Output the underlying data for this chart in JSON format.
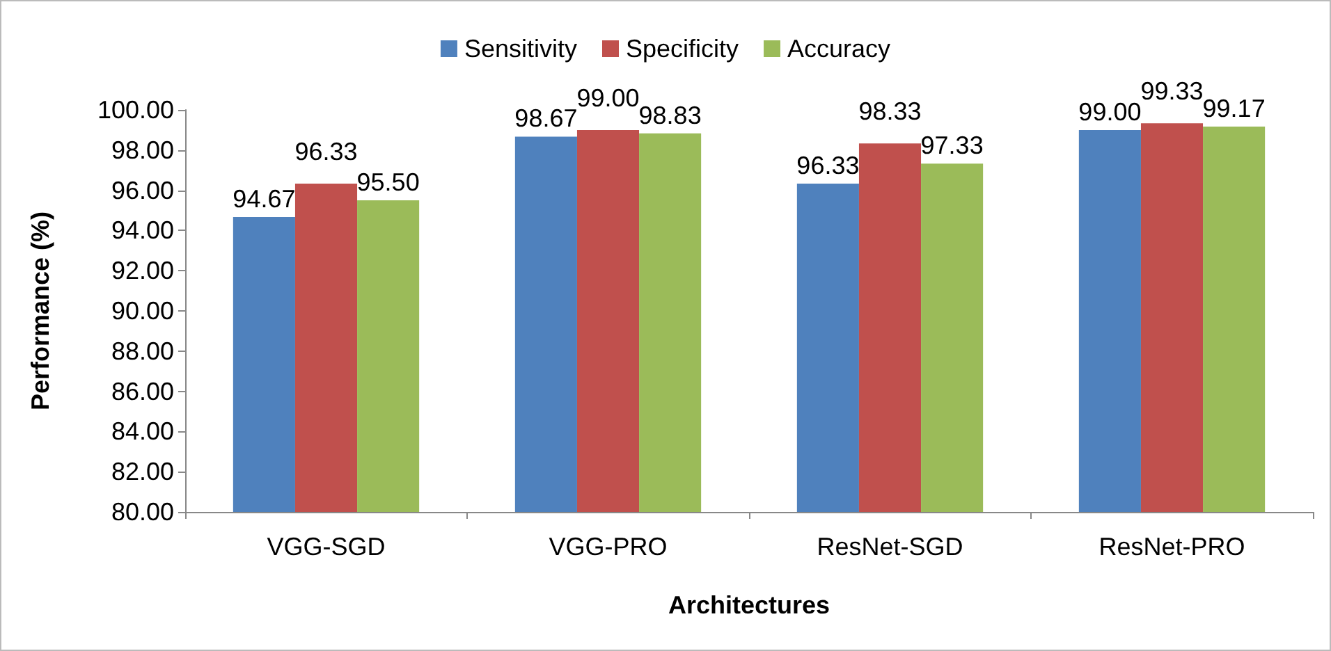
{
  "chart_data": {
    "type": "bar",
    "xlabel": "Architectures",
    "ylabel": "Performance (%)",
    "categories": [
      "VGG-SGD",
      "VGG-PRO",
      "ResNet-SGD",
      "ResNet-PRO"
    ],
    "series": [
      {
        "name": "Sensitivity",
        "color": "#4f81bd",
        "values": [
          94.67,
          98.67,
          96.33,
          99.0
        ],
        "value_labels": [
          "94.67",
          "98.67",
          "96.33",
          "99.00"
        ]
      },
      {
        "name": "Specificity",
        "color": "#c0504d",
        "values": [
          96.33,
          99.0,
          98.33,
          99.33
        ],
        "value_labels": [
          "96.33",
          "99.00",
          "98.33",
          "99.33"
        ]
      },
      {
        "name": "Accuracy",
        "color": "#9bbb59",
        "values": [
          95.5,
          98.83,
          97.33,
          99.17
        ],
        "value_labels": [
          "95.50",
          "98.83",
          "97.33",
          "99.17"
        ]
      }
    ],
    "ylim": [
      80,
      100
    ],
    "yticks": [
      {
        "value": 80,
        "label": "80.00"
      },
      {
        "value": 82,
        "label": "82.00"
      },
      {
        "value": 84,
        "label": "84.00"
      },
      {
        "value": 86,
        "label": "86.00"
      },
      {
        "value": 88,
        "label": "88.00"
      },
      {
        "value": 90,
        "label": "90.00"
      },
      {
        "value": 92,
        "label": "92.00"
      },
      {
        "value": 94,
        "label": "94.00"
      },
      {
        "value": 96,
        "label": "96.00"
      },
      {
        "value": 98,
        "label": "98.00"
      },
      {
        "value": 100,
        "label": "100.00"
      }
    ],
    "grid": false,
    "legend": "top"
  }
}
